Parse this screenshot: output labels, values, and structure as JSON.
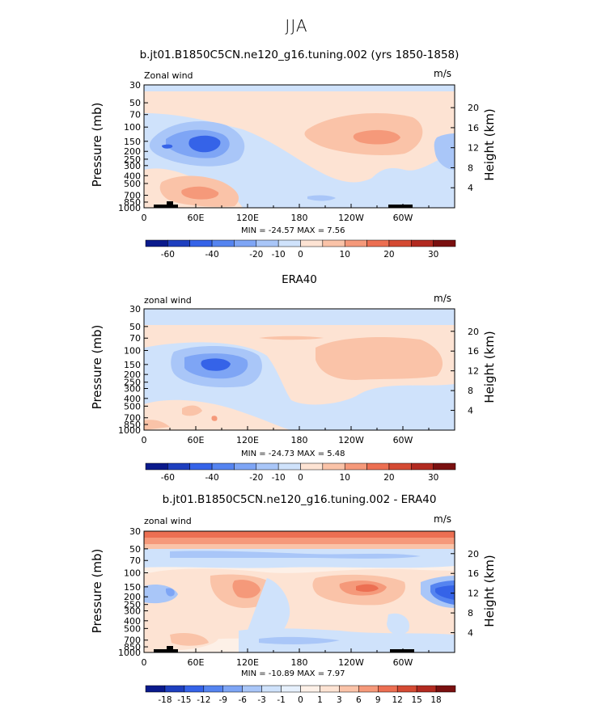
{
  "page_title": "JJA",
  "chart_data": [
    {
      "type": "heatmap",
      "title": "b.jt01.B1850C5CN.ne120_g16.tuning.002 (yrs 1850-1858)",
      "corner_left": "Zonal wind",
      "corner_right": "m/s",
      "ylabel": "Pressure (mb)",
      "ylabel_right": "Height (km)",
      "x_ticks": [
        "0",
        "60E",
        "120E",
        "180",
        "120W",
        "60W"
      ],
      "y_ticks": [
        "30",
        "50",
        "70",
        "100",
        "150",
        "200",
        "250",
        "300",
        "400",
        "500",
        "700",
        "850",
        "1000"
      ],
      "y_right_ticks": [
        "20",
        "16",
        "12",
        "8",
        "4"
      ],
      "min_max": "MIN = -24.57  MAX =   7.56",
      "min": -24.57,
      "max": 7.56,
      "colorbar_labels": [
        "-60",
        "-40",
        "-20",
        "-10",
        "0",
        "10",
        "20",
        "30"
      ]
    },
    {
      "type": "heatmap",
      "title": "ERA40",
      "corner_left": "zonal wind",
      "corner_right": "m/s",
      "ylabel": "Pressure (mb)",
      "ylabel_right": "Height (km)",
      "x_ticks": [
        "0",
        "60E",
        "120E",
        "180",
        "120W",
        "60W"
      ],
      "y_ticks": [
        "30",
        "50",
        "70",
        "100",
        "150",
        "200",
        "250",
        "300",
        "400",
        "500",
        "700",
        "850",
        "1000"
      ],
      "y_right_ticks": [
        "20",
        "16",
        "12",
        "8",
        "4"
      ],
      "min_max": "MIN = -24.73  MAX =   5.48",
      "min": -24.73,
      "max": 5.48,
      "colorbar_labels": [
        "-60",
        "-40",
        "-20",
        "-10",
        "0",
        "10",
        "20",
        "30"
      ]
    },
    {
      "type": "heatmap",
      "title": "b.jt01.B1850C5CN.ne120_g16.tuning.002 - ERA40",
      "corner_left": "zonal wind",
      "corner_right": "m/s",
      "ylabel": "Pressure (mb)",
      "ylabel_right": "Height (km)",
      "x_ticks": [
        "0",
        "60E",
        "120E",
        "180",
        "120W",
        "60W"
      ],
      "y_ticks": [
        "30",
        "50",
        "70",
        "100",
        "150",
        "200",
        "250",
        "300",
        "400",
        "500",
        "700",
        "850",
        "1000"
      ],
      "y_right_ticks": [
        "20",
        "16",
        "12",
        "8",
        "4"
      ],
      "min_max": "MIN = -10.89  MAX =   7.97",
      "min": -10.89,
      "max": 7.97,
      "colorbar_labels": [
        "-18",
        "-15",
        "-12",
        "-9",
        "-6",
        "-3",
        "-1",
        "0",
        "1",
        "3",
        "6",
        "9",
        "12",
        "15",
        "18"
      ]
    }
  ],
  "colors": {
    "colorbar_main": [
      "#0a1a8c",
      "#1e3fbf",
      "#3563e8",
      "#5584f0",
      "#7ea5f5",
      "#a9c6f8",
      "#cfe2fb",
      "#fde3d3",
      "#fac3a8",
      "#f5997a",
      "#ec6f52",
      "#d44a33",
      "#b22a20",
      "#7a1010"
    ],
    "colorbar_diff": [
      "#0a1a8c",
      "#1e3fbf",
      "#3563e8",
      "#5584f0",
      "#7ea5f5",
      "#a9c6f8",
      "#cfe2fb",
      "#e6f0fc",
      "#fdf0e7",
      "#fde3d3",
      "#fac3a8",
      "#f5997a",
      "#ec6f52",
      "#d44a33",
      "#b22a20",
      "#7a1010"
    ],
    "topography": "#000000"
  }
}
